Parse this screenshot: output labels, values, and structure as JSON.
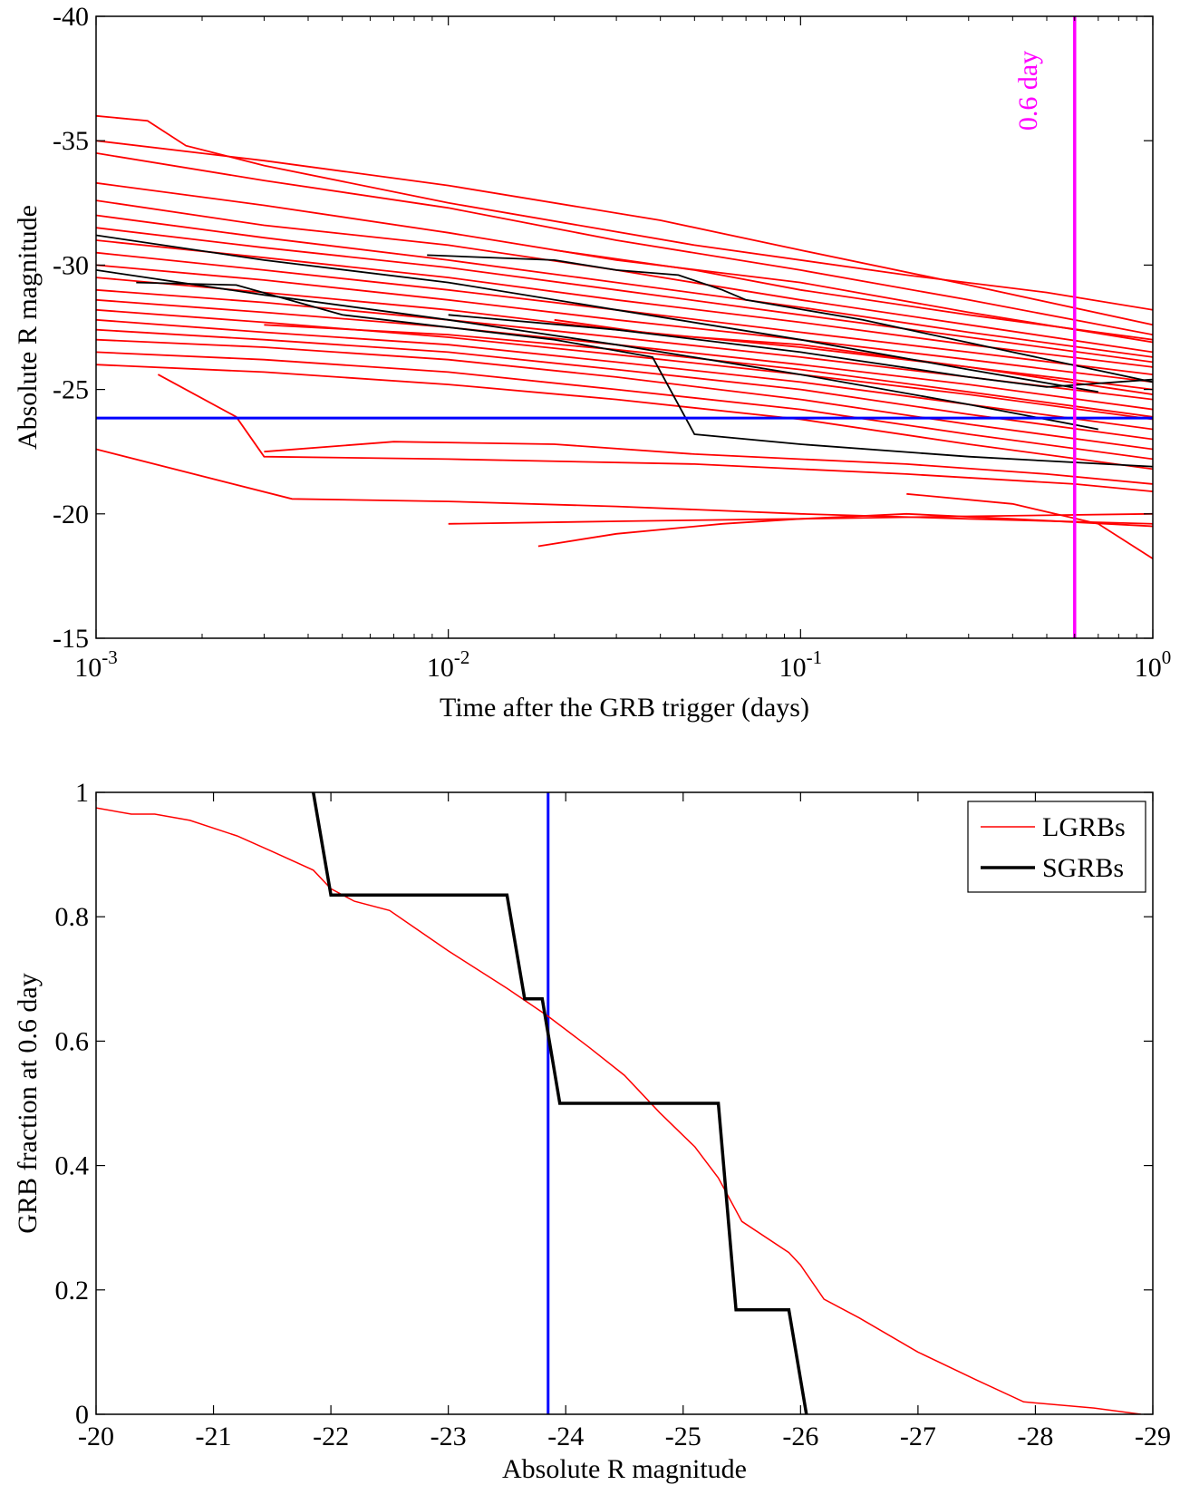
{
  "figure": {
    "panels": 2,
    "background": "#ffffff"
  },
  "chart_data": [
    {
      "type": "line",
      "xlabel": "Time after the GRB trigger (days)",
      "ylabel": "Absolute R magnitude",
      "xscale": "log",
      "xlim": [
        0.001,
        1
      ],
      "ylim": [
        -40,
        -15
      ],
      "y_reversed": true,
      "xticks": [
        {
          "value": 0.001,
          "base": "10",
          "exp": "-3"
        },
        {
          "value": 0.01,
          "base": "10",
          "exp": "-2"
        },
        {
          "value": 0.1,
          "base": "10",
          "exp": "-1"
        },
        {
          "value": 1,
          "base": "10",
          "exp": "0"
        }
      ],
      "yticks": [
        "-40",
        "-35",
        "-30",
        "-25",
        "-20",
        "-15"
      ],
      "grid": false,
      "colors": {
        "lgrb": "#ff0000",
        "sgrb": "#000000",
        "threshold": "#0000ff",
        "marker": "#ff00ff"
      },
      "reference_lines": [
        {
          "orientation": "horizontal",
          "y": -23.85,
          "color": "#0000ff"
        },
        {
          "orientation": "vertical",
          "x": 0.6,
          "color": "#ff00ff",
          "label": "0.6 day"
        }
      ],
      "series_groups": [
        {
          "group": "LGRB light curves",
          "color": "#ff0000",
          "curves": [
            {
              "x": [
                0.001,
                0.0014,
                0.0018,
                0.003,
                0.01,
                0.05,
                0.2,
                0.5,
                1
              ],
              "y": [
                -36.0,
                -35.8,
                -34.8,
                -34.0,
                -32.5,
                -30.8,
                -29.6,
                -28.9,
                -28.2
              ]
            },
            {
              "x": [
                0.001,
                0.003,
                0.01,
                0.04,
                0.1,
                0.3,
                1
              ],
              "y": [
                -35.0,
                -34.2,
                -33.2,
                -31.8,
                -30.6,
                -29.2,
                -27.6
              ]
            },
            {
              "x": [
                0.001,
                0.003,
                0.01,
                0.03,
                0.1,
                0.3,
                1
              ],
              "y": [
                -34.5,
                -33.4,
                -32.3,
                -31.0,
                -29.8,
                -28.6,
                -27.2
              ]
            },
            {
              "x": [
                0.001,
                0.003,
                0.01,
                0.03,
                0.1,
                0.3,
                1
              ],
              "y": [
                -33.3,
                -32.4,
                -31.3,
                -30.2,
                -29.3,
                -28.1,
                -26.9
              ]
            },
            {
              "x": [
                0.001,
                0.003,
                0.01,
                0.03,
                0.1,
                0.3,
                1
              ],
              "y": [
                -32.6,
                -31.6,
                -30.8,
                -29.8,
                -28.6,
                -27.6,
                -26.5
              ]
            },
            {
              "x": [
                0.001,
                0.003,
                0.01,
                0.03,
                0.1,
                0.3,
                1
              ],
              "y": [
                -32.0,
                -31.1,
                -30.2,
                -29.3,
                -28.3,
                -27.3,
                -26.3
              ]
            },
            {
              "x": [
                0.001,
                0.003,
                0.01,
                0.03,
                0.1,
                0.3,
                1
              ],
              "y": [
                -31.5,
                -30.7,
                -29.9,
                -29.0,
                -28.0,
                -27.1,
                -26.1
              ]
            },
            {
              "x": [
                0.001,
                0.003,
                0.01,
                0.03,
                0.1,
                0.3,
                1
              ],
              "y": [
                -31.0,
                -30.3,
                -29.5,
                -28.6,
                -27.7,
                -26.8,
                -25.9
              ]
            },
            {
              "x": [
                0.001,
                0.003,
                0.01,
                0.03,
                0.1,
                0.3,
                1
              ],
              "y": [
                -30.5,
                -29.8,
                -29.0,
                -28.2,
                -27.3,
                -26.5,
                -25.6
              ]
            },
            {
              "x": [
                0.001,
                0.003,
                0.01,
                0.03,
                0.1,
                0.3,
                1
              ],
              "y": [
                -30.0,
                -29.4,
                -28.6,
                -27.8,
                -27.0,
                -26.2,
                -25.3
              ]
            },
            {
              "x": [
                0.001,
                0.003,
                0.01,
                0.03,
                0.1,
                0.3,
                1
              ],
              "y": [
                -29.5,
                -28.9,
                -28.2,
                -27.4,
                -26.7,
                -25.9,
                -25.0
              ]
            },
            {
              "x": [
                0.001,
                0.003,
                0.01,
                0.03,
                0.1,
                0.3,
                1
              ],
              "y": [
                -29.0,
                -28.5,
                -27.8,
                -27.1,
                -26.3,
                -25.5,
                -24.6
              ]
            },
            {
              "x": [
                0.001,
                0.003,
                0.01,
                0.03,
                0.1,
                0.3,
                1
              ],
              "y": [
                -28.6,
                -28.1,
                -27.5,
                -26.8,
                -26.0,
                -25.2,
                -24.2
              ]
            },
            {
              "x": [
                0.001,
                0.003,
                0.01,
                0.03,
                0.1,
                0.3,
                1
              ],
              "y": [
                -28.2,
                -27.7,
                -27.1,
                -26.4,
                -25.6,
                -24.8,
                -23.8
              ]
            },
            {
              "x": [
                0.001,
                0.003,
                0.01,
                0.03,
                0.1,
                0.3,
                1
              ],
              "y": [
                -27.8,
                -27.3,
                -26.8,
                -26.1,
                -25.3,
                -24.4,
                -23.4
              ]
            },
            {
              "x": [
                0.001,
                0.003,
                0.01,
                0.03,
                0.1,
                0.3,
                1
              ],
              "y": [
                -27.4,
                -27.0,
                -26.5,
                -25.8,
                -25.0,
                -24.0,
                -23.0
              ]
            },
            {
              "x": [
                0.001,
                0.003,
                0.01,
                0.03,
                0.1,
                0.3,
                1
              ],
              "y": [
                -27.0,
                -26.7,
                -26.2,
                -25.5,
                -24.6,
                -23.6,
                -22.6
              ]
            },
            {
              "x": [
                0.001,
                0.003,
                0.01,
                0.03,
                0.1,
                0.3,
                1
              ],
              "y": [
                -26.5,
                -26.2,
                -25.7,
                -25.0,
                -24.2,
                -23.2,
                -22.2
              ]
            },
            {
              "x": [
                0.001,
                0.003,
                0.01,
                0.03,
                0.1,
                0.3,
                1
              ],
              "y": [
                -26.0,
                -25.7,
                -25.2,
                -24.6,
                -23.8,
                -22.8,
                -21.8
              ]
            },
            {
              "x": [
                0.0015,
                0.0025,
                0.003,
                0.01,
                0.05,
                0.2,
                0.6,
                1
              ],
              "y": [
                -25.6,
                -23.9,
                -22.3,
                -22.2,
                -22.0,
                -21.6,
                -21.2,
                -20.9
              ]
            },
            {
              "x": [
                0.001,
                0.0036,
                0.01,
                0.03,
                0.1,
                0.3,
                1
              ],
              "y": [
                -22.6,
                -20.6,
                -20.5,
                -20.3,
                -20.0,
                -19.8,
                -19.6
              ]
            },
            {
              "x": [
                0.003,
                0.007,
                0.02,
                0.05,
                0.2,
                0.5,
                1
              ],
              "y": [
                -22.5,
                -22.9,
                -22.8,
                -22.4,
                -22.0,
                -21.6,
                -21.2
              ]
            },
            {
              "x": [
                0.01,
                0.03,
                0.1,
                0.3,
                1
              ],
              "y": [
                -19.6,
                -19.7,
                -19.8,
                -19.9,
                -20.0
              ]
            },
            {
              "x": [
                0.018,
                0.03,
                0.06,
                0.1,
                0.2,
                0.4,
                1
              ],
              "y": [
                -18.7,
                -19.2,
                -19.6,
                -19.8,
                -20.0,
                -19.8,
                -19.5
              ]
            },
            {
              "x": [
                0.2,
                0.4,
                0.7,
                1
              ],
              "y": [
                -20.8,
                -20.4,
                -19.6,
                -18.2
              ]
            },
            {
              "x": [
                0.02,
                0.04,
                0.1,
                0.3,
                1
              ],
              "y": [
                -27.8,
                -27.2,
                -26.8,
                -25.9,
                -24.8
              ]
            },
            {
              "x": [
                0.02,
                0.05,
                0.1,
                0.3,
                1
              ],
              "y": [
                -30.6,
                -29.8,
                -29.0,
                -28.0,
                -27.0
              ]
            },
            {
              "x": [
                0.003,
                0.01,
                0.03,
                0.1,
                0.3,
                1
              ],
              "y": [
                -27.6,
                -27.2,
                -26.6,
                -25.8,
                -24.9,
                -23.9
              ]
            }
          ]
        },
        {
          "group": "SGRB light curves",
          "color": "#000000",
          "curves": [
            {
              "x": [
                0.001,
                0.003,
                0.01,
                0.03,
                0.1,
                0.3,
                0.7
              ],
              "y": [
                -31.2,
                -30.2,
                -29.3,
                -28.2,
                -27.0,
                -25.8,
                -24.9
              ]
            },
            {
              "x": [
                0.0013,
                0.0025,
                0.005,
                0.02,
                0.038,
                0.05,
                0.1,
                0.3,
                1
              ],
              "y": [
                -29.3,
                -29.2,
                -28.0,
                -27.0,
                -26.3,
                -23.2,
                -22.8,
                -22.3,
                -21.9
              ]
            },
            {
              "x": [
                0.0087,
                0.02,
                0.03,
                0.045,
                0.06,
                0.07,
                0.15,
                0.4,
                1
              ],
              "y": [
                -30.4,
                -30.2,
                -29.8,
                -29.6,
                -29.0,
                -28.6,
                -27.8,
                -26.5,
                -25.3
              ]
            },
            {
              "x": [
                0.001,
                0.003,
                0.01,
                0.03,
                0.1,
                0.3,
                0.7
              ],
              "y": [
                -29.8,
                -28.8,
                -27.8,
                -26.8,
                -25.6,
                -24.4,
                -23.4
              ]
            },
            {
              "x": [
                0.01,
                0.03,
                0.1,
                0.3,
                0.5,
                1
              ],
              "y": [
                -28.0,
                -27.4,
                -26.5,
                -25.5,
                -25.1,
                -25.4
              ]
            }
          ]
        }
      ]
    },
    {
      "type": "line",
      "xlabel": "Absolute R magnitude",
      "ylabel": "GRB fraction at 0.6 day",
      "xlim": [
        -20,
        -29
      ],
      "ylim": [
        0,
        1
      ],
      "x_reversed": true,
      "xticks": [
        "-20",
        "-21",
        "-22",
        "-23",
        "-24",
        "-25",
        "-26",
        "-27",
        "-28",
        "-29"
      ],
      "yticks": [
        "0",
        "0.2",
        "0.4",
        "0.6",
        "0.8",
        "1"
      ],
      "grid": false,
      "legend": {
        "position": "top-right"
      },
      "reference_lines": [
        {
          "orientation": "vertical",
          "x": -23.85,
          "color": "#0000ff"
        }
      ],
      "series": [
        {
          "name": "LGRBs",
          "color": "#ff0000",
          "x": [
            -20.0,
            -20.3,
            -20.5,
            -20.8,
            -21.2,
            -21.5,
            -21.85,
            -22.0,
            -22.2,
            -22.5,
            -23.0,
            -23.5,
            -23.85,
            -24.2,
            -24.5,
            -24.8,
            -25.1,
            -25.3,
            -25.5,
            -25.9,
            -26.0,
            -26.2,
            -26.5,
            -27.0,
            -27.5,
            -27.9,
            -28.5,
            -28.9
          ],
          "y": [
            0.975,
            0.965,
            0.965,
            0.955,
            0.93,
            0.905,
            0.875,
            0.845,
            0.825,
            0.81,
            0.745,
            0.685,
            0.64,
            0.59,
            0.545,
            0.485,
            0.43,
            0.38,
            0.31,
            0.26,
            0.24,
            0.185,
            0.155,
            0.1,
            0.055,
            0.02,
            0.01,
            0.0
          ]
        },
        {
          "name": "SGRBs",
          "color": "#000000",
          "x": [
            -21.85,
            -22.0,
            -23.5,
            -23.65,
            -23.8,
            -23.95,
            -25.3,
            -25.45,
            -25.9,
            -26.05
          ],
          "y": [
            1.0,
            0.835,
            0.835,
            0.668,
            0.668,
            0.5,
            0.5,
            0.168,
            0.168,
            0.0
          ]
        }
      ]
    }
  ]
}
